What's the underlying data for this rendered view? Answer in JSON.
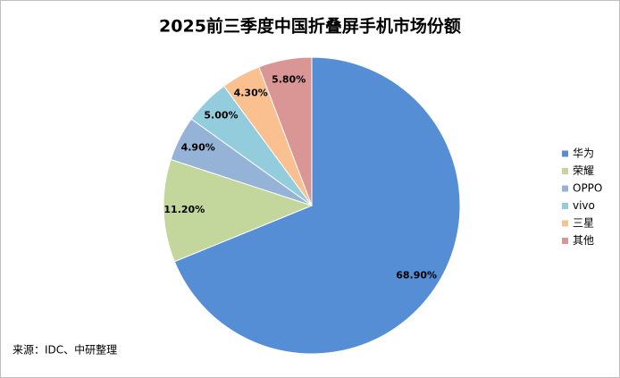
{
  "chart_data": {
    "type": "pie",
    "title": "2025前三季度中国折叠屏手机市场份额",
    "categories": [
      "华为",
      "荣耀",
      "OPPO",
      "vivo",
      "三星",
      "其他"
    ],
    "values": [
      68.9,
      11.2,
      4.9,
      5.0,
      4.3,
      5.8
    ],
    "value_labels": [
      "68.90%",
      "11.20%",
      "4.90%",
      "5.00%",
      "4.30%",
      "5.80%"
    ],
    "colors": [
      "#558ed5",
      "#c3d69b",
      "#95b3d7",
      "#93cddd",
      "#fac090",
      "#d99694"
    ],
    "legend": "right",
    "source": "来源：IDC、中研整理"
  }
}
